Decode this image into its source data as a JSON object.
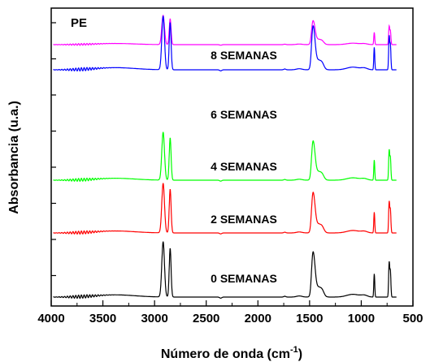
{
  "chart_data": {
    "type": "line",
    "title": "",
    "annotation": "PE",
    "xlabel_main": "Número de onda (cm",
    "xlabel_sup": "-1",
    "xlabel_end": ")",
    "ylabel": "Absorbancia (u.a.)",
    "xlim": [
      4000,
      500
    ],
    "xticks": [
      4000,
      3500,
      3000,
      2500,
      2000,
      1500,
      1000,
      500
    ],
    "x_reversed": true,
    "grid": false,
    "y_tick_labels": false,
    "series": [
      {
        "name": "8 SEMANAS",
        "label": "8 SEMANAS",
        "color": "#ff00ff"
      },
      {
        "name": "6 SEMANAS",
        "label": "6 SEMANAS",
        "color": "#0000ff"
      },
      {
        "name": "4 SEMANAS",
        "label": "4 SEMANAS",
        "color": "#00ff00"
      },
      {
        "name": "2 SEMANAS",
        "label": "2 SEMANAS",
        "color": "#ff0000"
      },
      {
        "name": "0 SEMANAS",
        "label": "0 SEMANAS",
        "color": "#000000"
      }
    ],
    "peaks_cm-1": [
      2915,
      2848,
      1472,
      1462,
      1377,
      1030,
      874,
      730,
      718
    ]
  }
}
